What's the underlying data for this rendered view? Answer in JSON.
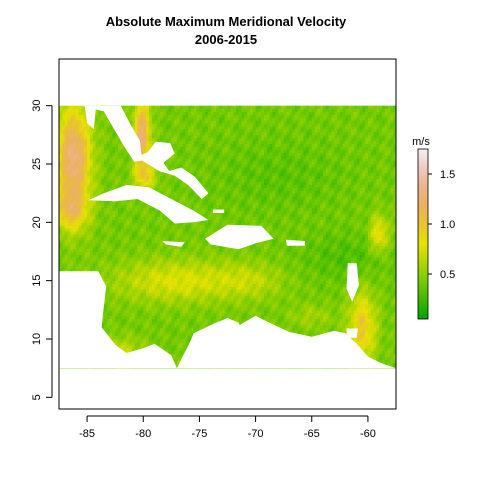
{
  "chart_data": {
    "type": "heatmap",
    "title": "Absolute Maximum Meridional Velocity",
    "subtitle": "2006-2015",
    "xlabel": "",
    "ylabel": "",
    "xlim": [
      -87.5,
      -57.5
    ],
    "ylim": [
      4,
      34
    ],
    "data_extent": {
      "lon": [
        -87.5,
        -57.5
      ],
      "lat": [
        7.5,
        30
      ]
    },
    "x_ticks": [
      -85,
      -80,
      -75,
      -70,
      -65,
      -60
    ],
    "x_tick_labels": [
      "-85",
      "-80",
      "-75",
      "-70",
      "-65",
      "-60"
    ],
    "y_ticks": [
      5,
      10,
      15,
      20,
      25,
      30
    ],
    "y_tick_labels": [
      "5",
      "10",
      "15",
      "20",
      "25",
      "30"
    ],
    "legend": {
      "title": "m/s",
      "placement": "right",
      "range": [
        0.05,
        1.75
      ],
      "ticks": [
        0.5,
        1.0,
        1.5
      ],
      "tick_labels": [
        "0.5",
        "1.0",
        "1.5"
      ],
      "colormap": [
        "#00a600",
        "#3bb900",
        "#76cb00",
        "#b2d600",
        "#e6e300",
        "#e8c32e",
        "#ebb25e",
        "#edb48e",
        "#f0c9c0",
        "#f2f2f2"
      ]
    },
    "land_color": "#ffffff",
    "grid": false
  }
}
